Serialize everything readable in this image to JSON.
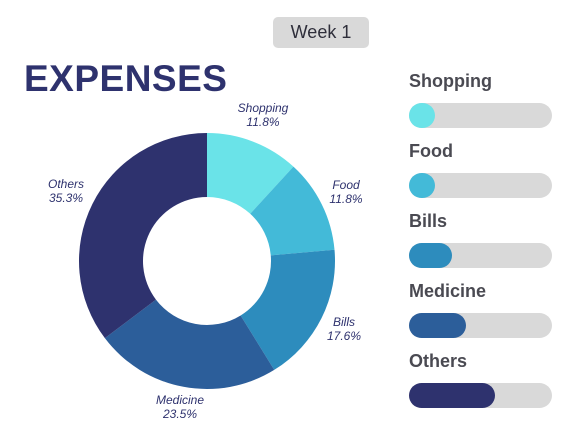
{
  "header": {
    "week_label": "Week 1"
  },
  "title": "EXPENSES",
  "chart_data": {
    "type": "pie",
    "donut": true,
    "title": "EXPENSES",
    "categories": [
      "Shopping",
      "Food",
      "Bills",
      "Medicine",
      "Others"
    ],
    "values": [
      11.8,
      11.8,
      17.6,
      23.5,
      35.3
    ],
    "value_labels": [
      "11.8%",
      "11.8%",
      "17.6%",
      "23.5%",
      "35.3%"
    ],
    "colors": [
      "#6ae3e8",
      "#43bad8",
      "#2d8cbd",
      "#2c5e9a",
      "#2e326e"
    ],
    "legend_placement": "right",
    "progress": [
      {
        "name": "Shopping",
        "fraction": 0.18,
        "color": "#6ae3e8"
      },
      {
        "name": "Food",
        "fraction": 0.18,
        "color": "#43bad8"
      },
      {
        "name": "Bills",
        "fraction": 0.3,
        "color": "#2d8cbd"
      },
      {
        "name": "Medicine",
        "fraction": 0.4,
        "color": "#2c5e9a"
      },
      {
        "name": "Others",
        "fraction": 0.6,
        "color": "#2e326e"
      }
    ]
  }
}
